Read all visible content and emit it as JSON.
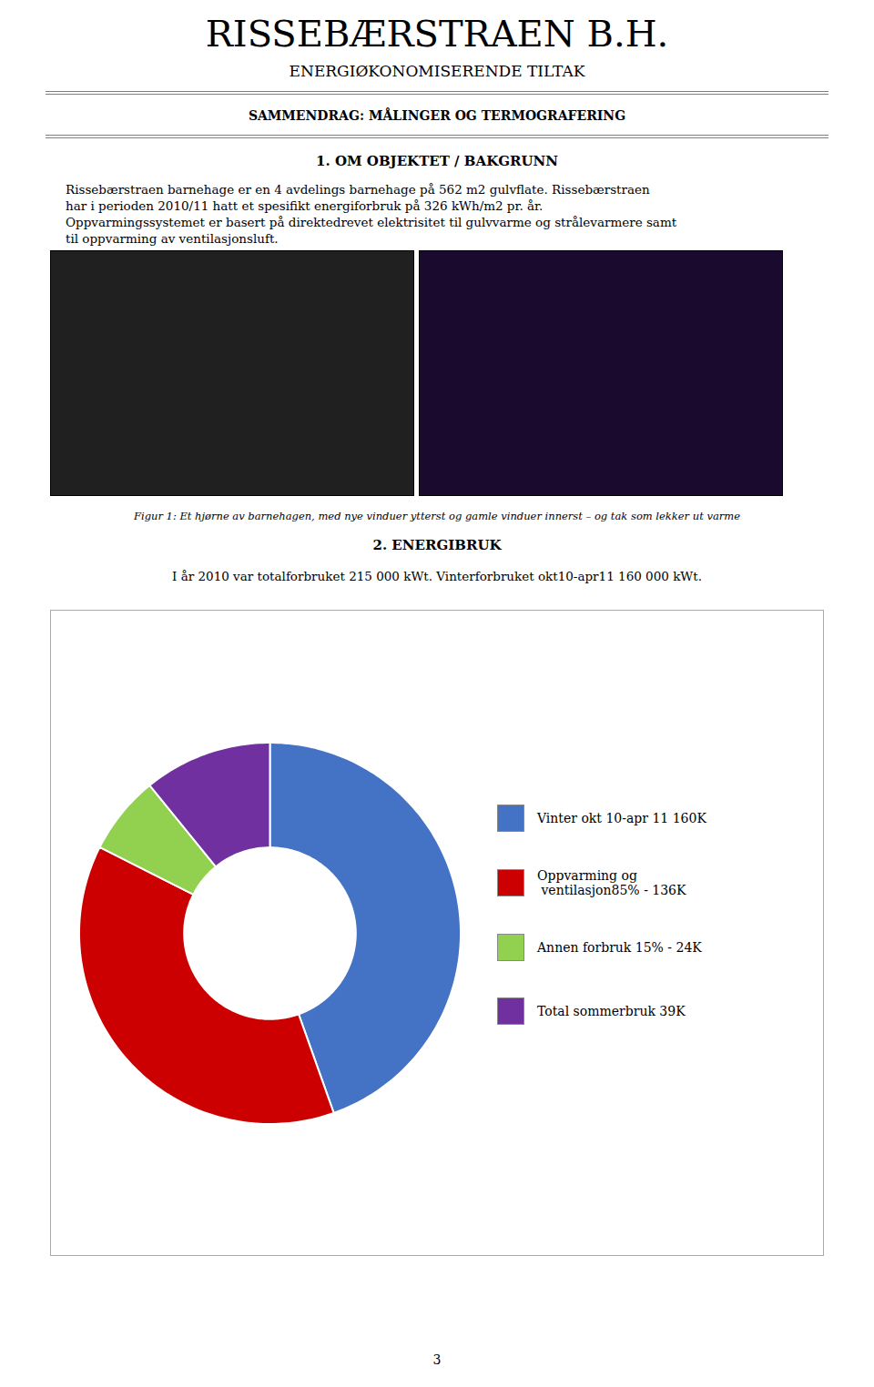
{
  "chart_data": {
    "type": "pie",
    "title": "RISSEBÆRSTRAEN B.H.",
    "subtitle": "ENERGIØKONOMISERENDE TILTAK",
    "annotations": [
      "SAMMENDRAG: MÅLINGER OG TERMOGRAFERING",
      "1.   OM OBJEKTET / BAKGRUNN",
      "Rissebærstraen barnehage er en 4 avdelings barnehage på 562 m2 gulvflate. Rissebærstraen",
      "har i perioden 2010/11 hatt et spesifikt energiforbruk på 326 kWh/m2 pr. år.",
      "Oppvarmingssystemet er basert på direktedrevet elektrisitet til gulvvarme og strålevarmere samt",
      "til oppvarming av ventilasjonsluft.",
      "Figur 1: Et hjørne av barnehagen, med nye vinduer ytterst og gamle vinduer innerst – og tak som lekker ut varme",
      "2.   ENERGIBRUK",
      "I år 2010 var totalforbruket 215 000 kWt. Vinterforbruket okt10-apr11 160 000 kWt.",
      "3"
    ],
    "categories": [
      "Vinter okt 10-apr 11 160K",
      "Oppvarming og\n ventilasjon85% - 136K",
      "Annen forbruk 15% - 24K",
      "Total sommerbruk 39K"
    ],
    "values": [
      160,
      136,
      24,
      39
    ],
    "colors": [
      "#4472C4",
      "#CC0000",
      "#92D050",
      "#7030A0"
    ],
    "legend": "right"
  }
}
